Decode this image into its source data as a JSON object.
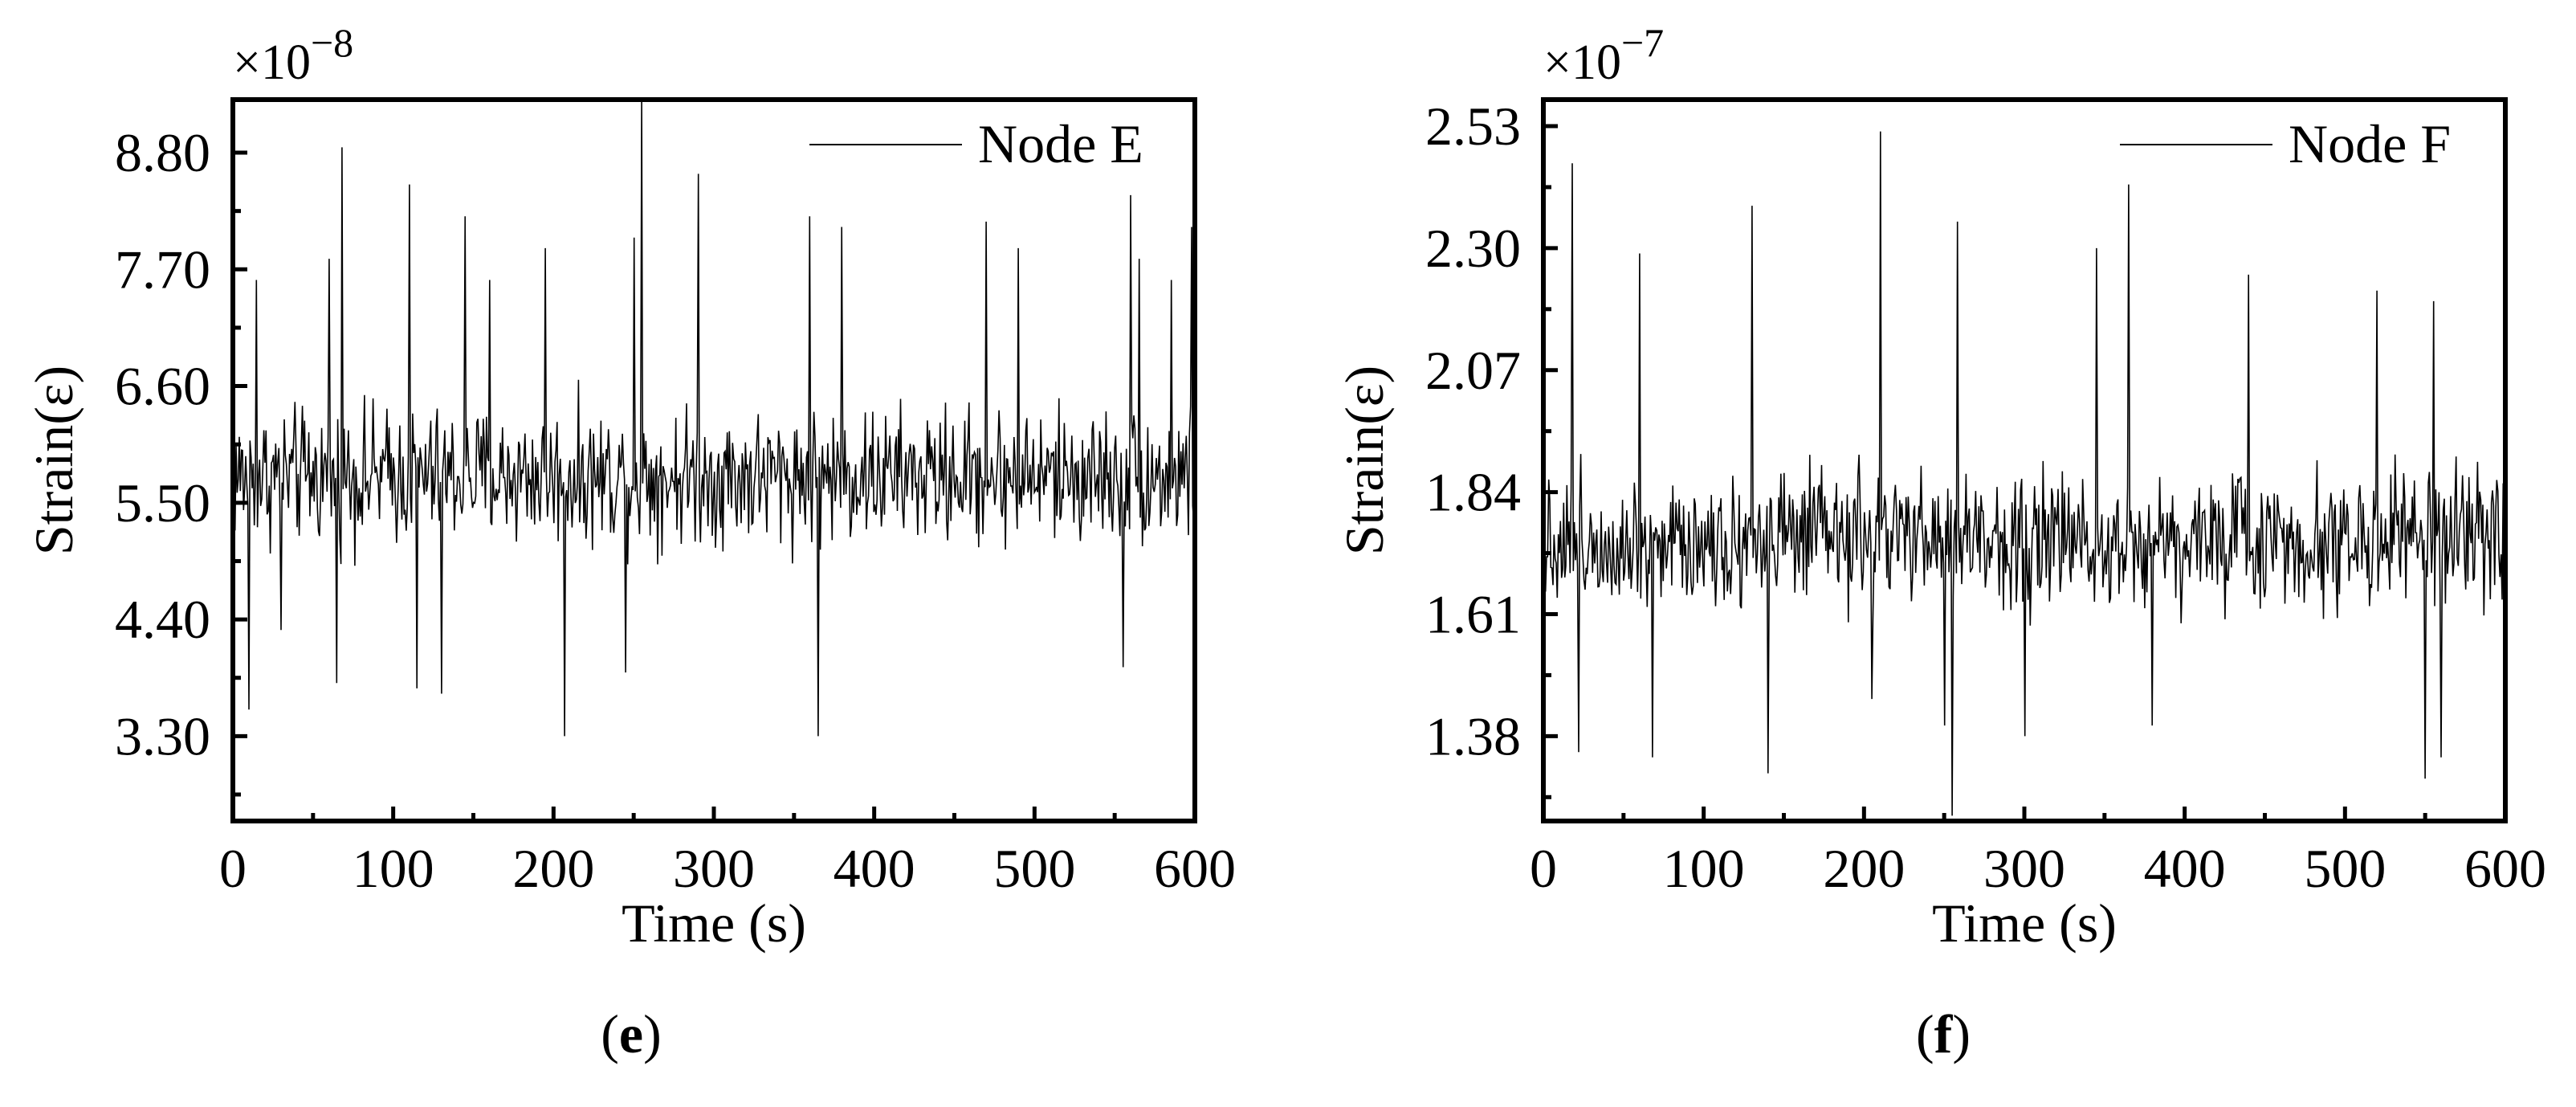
{
  "chart_data": [
    {
      "type": "line",
      "panel_label": "(e)",
      "panel_letter": "e",
      "xlabel": "Time (s)",
      "ylabel": "Strain(ε)",
      "multiplier": "×10",
      "multiplier_exp": "−8",
      "xlim": [
        0,
        600
      ],
      "ylim": [
        2.5,
        9.3
      ],
      "x_ticks": [
        0,
        100,
        200,
        300,
        400,
        500,
        600
      ],
      "y_ticks": [
        3.3,
        4.4,
        5.5,
        6.6,
        7.7,
        8.8
      ],
      "y_tick_labels": [
        "3.30",
        "4.40",
        "5.50",
        "6.60",
        "7.70",
        "8.80"
      ],
      "legend": {
        "position": "top-right",
        "entries": [
          "Node E"
        ]
      },
      "series": [
        {
          "name": "Node E",
          "color": "#000000",
          "sampling": {
            "x_start": 0,
            "x_end": 600,
            "n_points": 900
          },
          "mean": 5.75,
          "noise_spread": 0.55,
          "spikes": [
            {
              "x": 10,
              "value": 3.55
            },
            {
              "x": 15,
              "value": 7.6
            },
            {
              "x": 30,
              "value": 4.3
            },
            {
              "x": 60,
              "value": 7.8
            },
            {
              "x": 65,
              "value": 3.8
            },
            {
              "x": 68,
              "value": 8.85
            },
            {
              "x": 110,
              "value": 8.5
            },
            {
              "x": 115,
              "value": 3.75
            },
            {
              "x": 130,
              "value": 3.7
            },
            {
              "x": 145,
              "value": 8.2
            },
            {
              "x": 160,
              "value": 7.6
            },
            {
              "x": 195,
              "value": 7.9
            },
            {
              "x": 207,
              "value": 3.3
            },
            {
              "x": 245,
              "value": 3.9
            },
            {
              "x": 250,
              "value": 8.0
            },
            {
              "x": 255,
              "value": 9.3
            },
            {
              "x": 290,
              "value": 8.6
            },
            {
              "x": 360,
              "value": 8.2
            },
            {
              "x": 365,
              "value": 3.3
            },
            {
              "x": 380,
              "value": 8.1
            },
            {
              "x": 470,
              "value": 8.15
            },
            {
              "x": 490,
              "value": 7.9
            },
            {
              "x": 555,
              "value": 3.95
            },
            {
              "x": 560,
              "value": 8.4
            },
            {
              "x": 565,
              "value": 7.8
            },
            {
              "x": 585,
              "value": 7.6
            },
            {
              "x": 598,
              "value": 8.1
            }
          ]
        }
      ]
    },
    {
      "type": "line",
      "panel_label": "(f)",
      "panel_letter": "f",
      "xlabel": "Time (s)",
      "ylabel": "Strain(ε)",
      "multiplier": "×10",
      "multiplier_exp": "−7",
      "xlim": [
        0,
        600
      ],
      "ylim": [
        1.22,
        2.58
      ],
      "x_ticks": [
        0,
        100,
        200,
        300,
        400,
        500,
        600
      ],
      "y_ticks": [
        1.38,
        1.61,
        1.84,
        2.07,
        2.3,
        2.53
      ],
      "y_tick_labels": [
        "1.38",
        "1.61",
        "1.84",
        "2.07",
        "2.30",
        "2.53"
      ],
      "legend": {
        "position": "top-right",
        "entries": [
          "Node F"
        ]
      },
      "series": [
        {
          "name": "Node F",
          "color": "#000000",
          "sampling": {
            "x_start": 0,
            "x_end": 600,
            "n_points": 900
          },
          "mean": 1.75,
          "noise_spread": 0.11,
          "spikes": [
            {
              "x": 18,
              "value": 2.46
            },
            {
              "x": 22,
              "value": 1.35
            },
            {
              "x": 60,
              "value": 2.29
            },
            {
              "x": 68,
              "value": 1.34
            },
            {
              "x": 130,
              "value": 2.38
            },
            {
              "x": 140,
              "value": 1.31
            },
            {
              "x": 205,
              "value": 1.45
            },
            {
              "x": 210,
              "value": 2.52
            },
            {
              "x": 250,
              "value": 1.4
            },
            {
              "x": 255,
              "value": 1.23
            },
            {
              "x": 258,
              "value": 2.35
            },
            {
              "x": 300,
              "value": 1.38
            },
            {
              "x": 345,
              "value": 2.3
            },
            {
              "x": 365,
              "value": 2.42
            },
            {
              "x": 380,
              "value": 1.4
            },
            {
              "x": 440,
              "value": 2.25
            },
            {
              "x": 520,
              "value": 2.22
            },
            {
              "x": 550,
              "value": 1.3
            },
            {
              "x": 555,
              "value": 2.2
            },
            {
              "x": 560,
              "value": 1.34
            }
          ]
        }
      ]
    }
  ]
}
